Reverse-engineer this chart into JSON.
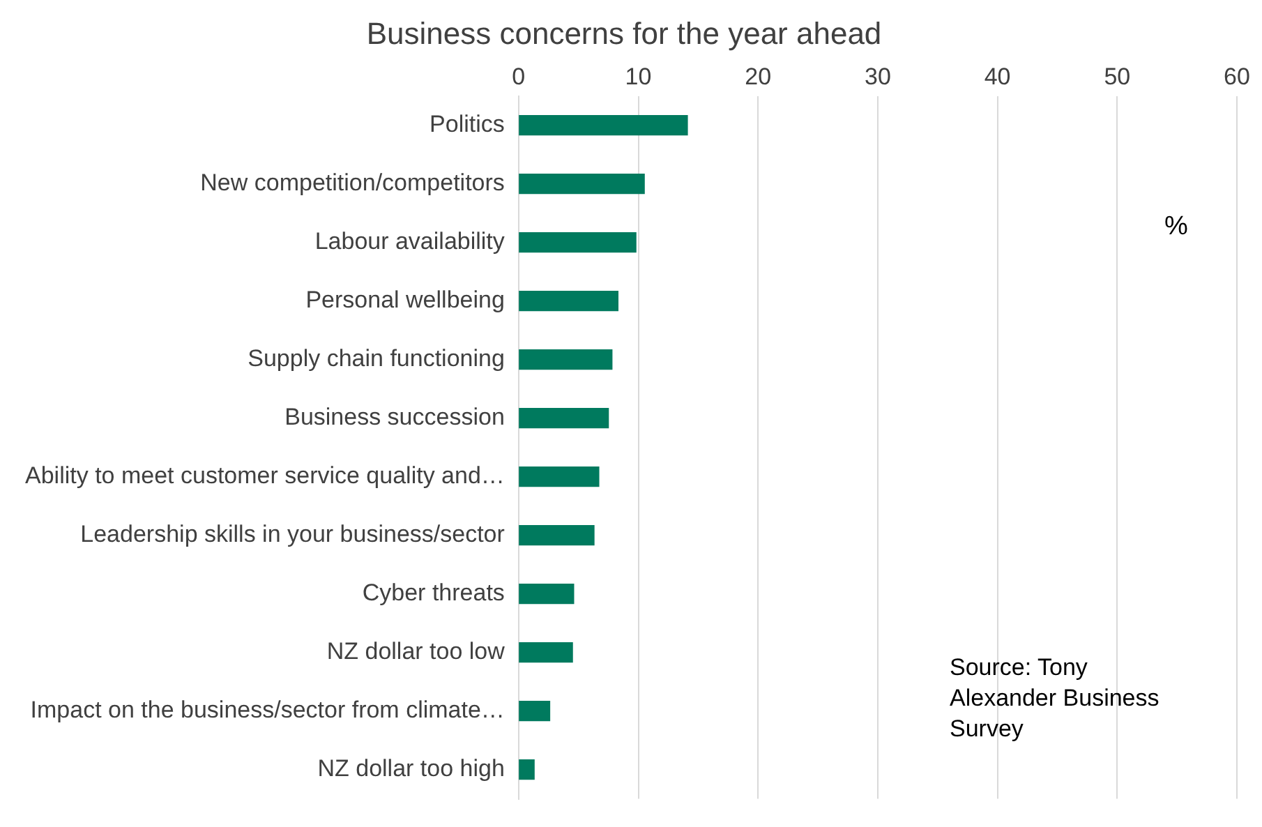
{
  "chart_data": {
    "type": "bar",
    "orientation": "horizontal",
    "title": "Business concerns for the year ahead",
    "categories": [
      "Politics",
      "New competition/competitors",
      "Labour availability",
      "Personal wellbeing",
      "Supply chain functioning",
      "Business succession",
      "Ability to meet customer service quality and…",
      "Leadership skills in your business/sector",
      "Cyber threats",
      "NZ dollar too low",
      "Impact on the business/sector from climate…",
      "NZ dollar too high"
    ],
    "values": [
      14.1,
      10.5,
      9.8,
      8.3,
      7.8,
      7.5,
      6.7,
      6.3,
      4.6,
      4.5,
      2.6,
      1.3
    ],
    "color": "#007a5e",
    "xlim": [
      0,
      60
    ],
    "xticks": [
      0,
      10,
      20,
      30,
      40,
      50,
      60
    ],
    "grid": "x",
    "legend": false,
    "annotations": [
      "%",
      "Source: Tony Alexander Business Survey"
    ]
  }
}
